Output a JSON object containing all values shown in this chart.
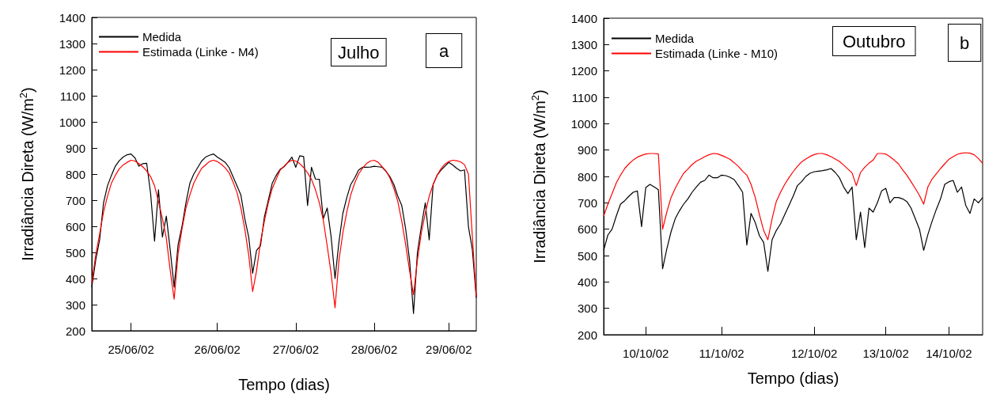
{
  "chart_data": [
    {
      "type": "line",
      "xlabel": "Tempo (dias)",
      "ylabel": "Irradiância Direta (W/m$^{2}$)",
      "annotations": [
        "Julho",
        "a"
      ],
      "legend": "top left",
      "grid": false,
      "marker": "none",
      "line_style": "solid",
      "categories": [
        null,
        null,
        null,
        null,
        null,
        null,
        null,
        null,
        null,
        null,
        "25/06/02",
        null,
        null,
        null,
        null,
        null,
        null,
        null,
        null,
        null,
        null,
        null,
        null,
        null,
        null,
        null,
        null,
        null,
        null,
        null,
        null,
        null,
        "26/06/02",
        null,
        null,
        null,
        null,
        null,
        null,
        null,
        null,
        null,
        null,
        null,
        null,
        null,
        null,
        null,
        null,
        null,
        null,
        null,
        "27/06/02",
        null,
        null,
        null,
        null,
        null,
        null,
        null,
        null,
        null,
        null,
        null,
        null,
        null,
        null,
        null,
        null,
        null,
        null,
        null,
        "28/06/02",
        null,
        null,
        null,
        null,
        null,
        null,
        null,
        null,
        null,
        null,
        null,
        null,
        null,
        null,
        null,
        null,
        null,
        null,
        "29/06/02",
        null,
        null,
        null,
        null,
        null,
        null,
        null
      ],
      "ylim": [
        200,
        1400
      ],
      "yticks": [
        200,
        300,
        400,
        500,
        600,
        700,
        800,
        900,
        1000,
        1100,
        1200,
        1300,
        1400
      ],
      "series": [
        {
          "name": "Medida",
          "color": "#000000",
          "values": [
            367,
            470,
            548,
            690,
            755,
            795,
            830,
            851,
            865,
            874,
            877,
            862,
            830,
            840,
            841,
            725,
            543,
            740,
            559,
            639,
            508,
            367,
            530,
            600,
            690,
            765,
            800,
            825,
            850,
            865,
            872,
            877,
            865,
            855,
            845,
            825,
            790,
            755,
            720,
            629,
            559,
            420,
            508,
            525,
            637,
            700,
            765,
            795,
            818,
            828,
            845,
            865,
            826,
            870,
            867,
            680,
            826,
            781,
            780,
            629,
            670,
            560,
            400,
            540,
            650,
            710,
            760,
            785,
            815,
            826,
            826,
            827,
            830,
            828,
            826,
            810,
            790,
            760,
            715,
            680,
            590,
            470,
            266,
            500,
            600,
            690,
            548,
            760,
            795,
            815,
            830,
            845,
            835,
            822,
            812,
            816,
            599,
            510,
            326
          ]
        },
        {
          "name": "Estimada (Linke - M4)",
          "color": "#ff0000",
          "values": [
            382,
            490,
            570,
            655,
            715,
            765,
            795,
            820,
            835,
            845,
            853,
            850,
            840,
            828,
            812,
            790,
            755,
            695,
            630,
            555,
            430,
            321,
            495,
            590,
            670,
            720,
            765,
            795,
            822,
            835,
            848,
            853,
            848,
            838,
            824,
            805,
            770,
            730,
            670,
            590,
            490,
            350,
            430,
            540,
            620,
            690,
            745,
            780,
            815,
            830,
            845,
            853,
            850,
            840,
            825,
            805,
            780,
            740,
            690,
            625,
            525,
            420,
            288,
            470,
            575,
            655,
            720,
            765,
            800,
            822,
            840,
            850,
            853,
            845,
            828,
            812,
            785,
            745,
            695,
            620,
            530,
            430,
            338,
            470,
            575,
            650,
            715,
            760,
            795,
            820,
            838,
            848,
            853,
            851,
            847,
            836,
            800,
            560,
            330
          ]
        }
      ]
    },
    {
      "type": "line",
      "xlabel": "Tempo (dias)",
      "ylabel": "Irradiância Direta (W/m$^{2}$)",
      "annotations": [
        "Outubro",
        "b"
      ],
      "legend": "top left",
      "grid": false,
      "marker": "none",
      "line_style": "solid",
      "categories": [
        null,
        null,
        null,
        null,
        null,
        null,
        null,
        null,
        null,
        null,
        "10/10/02",
        null,
        null,
        null,
        null,
        null,
        null,
        null,
        null,
        null,
        null,
        null,
        null,
        null,
        null,
        null,
        null,
        null,
        "11/10/02",
        null,
        null,
        null,
        null,
        null,
        null,
        null,
        null,
        null,
        null,
        null,
        null,
        null,
        null,
        null,
        null,
        null,
        null,
        null,
        null,
        null,
        "12/10/02",
        null,
        null,
        null,
        null,
        null,
        null,
        null,
        null,
        null,
        null,
        null,
        null,
        null,
        null,
        null,
        null,
        "13/10/02",
        null,
        null,
        null,
        null,
        null,
        null,
        null,
        null,
        null,
        null,
        null,
        null,
        null,
        null,
        "14/10/02",
        null,
        null,
        null,
        null,
        null,
        null,
        null,
        null
      ],
      "ylim": [
        200,
        1400
      ],
      "yticks": [
        200,
        300,
        400,
        500,
        600,
        700,
        800,
        900,
        1000,
        1100,
        1200,
        1300,
        1400
      ],
      "series": [
        {
          "name": "Medida",
          "color": "#000000",
          "values": [
            520,
            578,
            600,
            650,
            695,
            708,
            725,
            740,
            745,
            610,
            758,
            770,
            760,
            750,
            450,
            525,
            590,
            640,
            670,
            695,
            715,
            740,
            760,
            778,
            785,
            805,
            795,
            795,
            805,
            803,
            797,
            788,
            765,
            740,
            540,
            660,
            625,
            575,
            550,
            440,
            560,
            595,
            620,
            655,
            690,
            725,
            765,
            780,
            800,
            812,
            818,
            820,
            822,
            825,
            830,
            815,
            795,
            760,
            735,
            760,
            560,
            665,
            530,
            680,
            665,
            700,
            745,
            755,
            700,
            720,
            720,
            715,
            705,
            680,
            640,
            600,
            520,
            580,
            630,
            675,
            715,
            770,
            780,
            785,
            740,
            760,
            690,
            660,
            715,
            700,
            720
          ]
        },
        {
          "name": "Estimada (Linke - M10)",
          "color": "#ff0000",
          "values": [
            650,
            695,
            735,
            775,
            805,
            830,
            848,
            862,
            873,
            880,
            885,
            887,
            887,
            885,
            600,
            665,
            720,
            755,
            785,
            812,
            828,
            845,
            858,
            866,
            875,
            882,
            887,
            886,
            880,
            873,
            865,
            852,
            838,
            820,
            805,
            770,
            720,
            655,
            595,
            560,
            640,
            705,
            740,
            770,
            795,
            818,
            838,
            855,
            866,
            876,
            883,
            887,
            887,
            882,
            875,
            866,
            857,
            843,
            828,
            813,
            765,
            815,
            835,
            850,
            862,
            887,
            887,
            885,
            875,
            862,
            848,
            825,
            805,
            780,
            755,
            728,
            695,
            760,
            790,
            810,
            830,
            848,
            865,
            875,
            884,
            888,
            890,
            888,
            882,
            868,
            850
          ]
        }
      ]
    }
  ]
}
